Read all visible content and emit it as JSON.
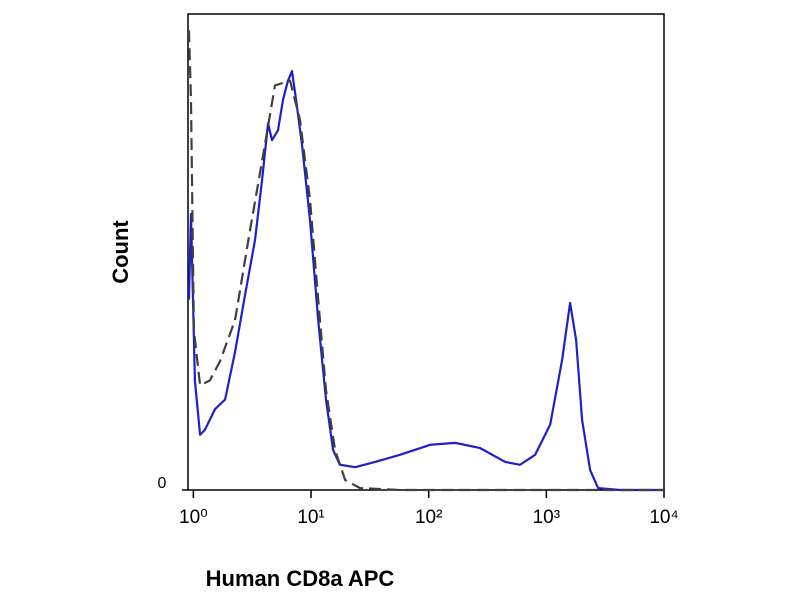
{
  "chart_data": {
    "type": "line",
    "x_label": "Human CD8a APC",
    "y_label": "Count",
    "xscale": "log",
    "xlim": [
      0.9,
      10000
    ],
    "xticks": [
      {
        "value": 1,
        "label": "10⁰"
      },
      {
        "value": 10,
        "label": "10¹"
      },
      {
        "value": 100,
        "label": "10²"
      },
      {
        "value": 1000,
        "label": "10³"
      },
      {
        "value": 10000,
        "label": "10⁴"
      }
    ],
    "ylim": [
      0,
      100
    ],
    "yticks": [
      0
    ],
    "grid": false,
    "series": [
      {
        "color": "#2020c8",
        "dashed": false,
        "x": [
          0.917,
          0.954,
          1.03,
          1.14,
          1.25,
          1.53,
          1.86,
          2.26,
          2.75,
          3.34,
          3.83,
          4.31,
          4.66,
          5.24,
          5.78,
          6.37,
          6.89,
          7.46,
          8.38,
          9.8,
          11.5,
          13.4,
          15.4,
          17.6,
          23.7,
          35,
          57,
          103,
          168,
          274,
          447,
          598,
          803,
          1077,
          1361,
          1592,
          1791,
          2014,
          2355,
          2755,
          4236,
          10000
        ],
        "values": [
          40,
          58,
          23,
          11.6,
          12.6,
          17,
          19,
          29,
          41,
          52.5,
          65,
          77,
          73.5,
          75.6,
          82,
          86,
          88,
          82,
          72.5,
          56.7,
          35.7,
          19,
          8.4,
          5.3,
          4.8,
          5.9,
          7.4,
          9.5,
          9.9,
          8.8,
          5.9,
          5.3,
          7.4,
          13.7,
          27.3,
          39.3,
          31.5,
          14.7,
          4.2,
          0.4,
          0,
          0
        ]
      },
      {
        "color": "#404040",
        "dashed": true,
        "x": [
          0.917,
          0.954,
          1.01,
          1.14,
          1.38,
          1.68,
          2.26,
          3.03,
          3.83,
          4.94,
          6.63,
          8.06,
          9.8,
          11.5,
          13.4,
          16,
          19.5,
          26.1,
          57,
          10000
        ],
        "values": [
          96.6,
          82,
          33.6,
          22,
          23,
          27,
          35.7,
          54.6,
          69,
          85,
          86,
          77.7,
          61,
          40,
          21,
          8.4,
          2.1,
          0.4,
          0,
          0
        ]
      }
    ]
  }
}
